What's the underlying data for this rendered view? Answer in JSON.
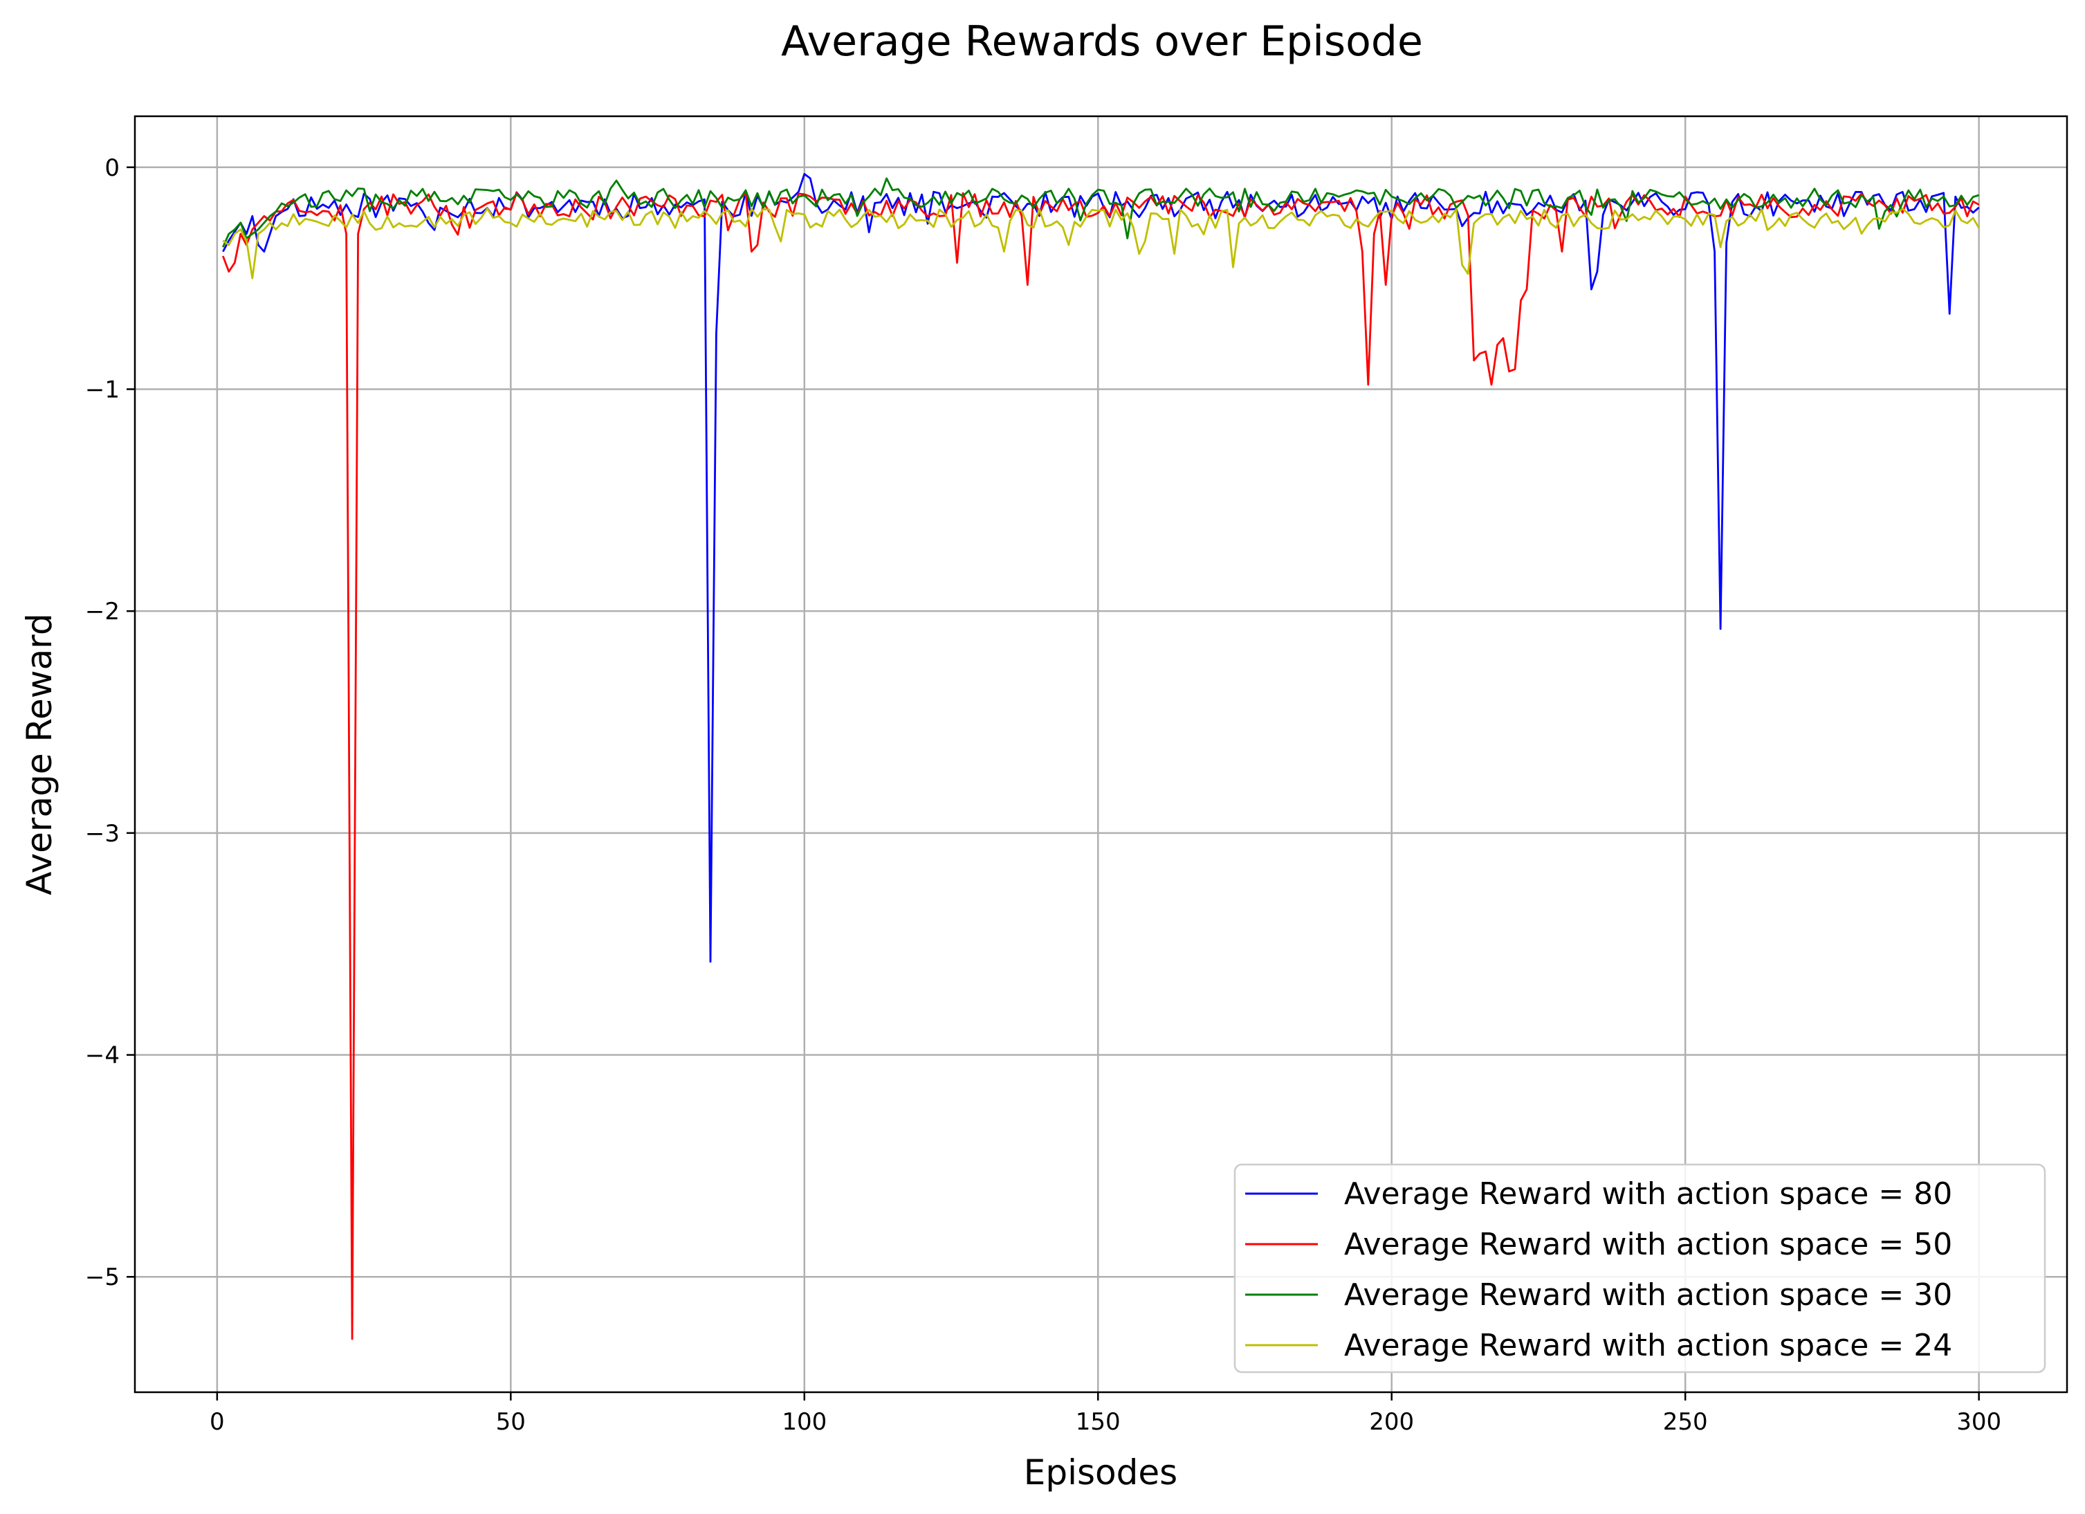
{
  "chart_data": {
    "type": "line",
    "title": "Average Rewards over Episode",
    "xlabel": "Episodes",
    "ylabel": "Average Reward",
    "xlim": [
      -14,
      315
    ],
    "ylim": [
      -5.52,
      0.23
    ],
    "xticks": [
      0,
      50,
      100,
      150,
      200,
      250,
      300
    ],
    "yticks": [
      0,
      -1,
      -2,
      -3,
      -4,
      -5
    ],
    "xtick_labels": [
      "0",
      "50",
      "100",
      "150",
      "200",
      "250",
      "300"
    ],
    "ytick_labels": [
      "0",
      "−1",
      "−2",
      "−3",
      "−4",
      "−5"
    ],
    "grid": true,
    "legend_position": "lower-right",
    "series": [
      {
        "name": "Average Reward with action space = 80",
        "color": "#0000ff",
        "base": -0.17,
        "noise": 0.06,
        "seed": 11,
        "start": [
          -0.38,
          -0.33,
          -0.29,
          -0.25,
          -0.3,
          -0.22,
          -0.35,
          -0.38,
          -0.3,
          -0.22
        ],
        "spikes": [
          [
            84,
            -3.58
          ],
          [
            85,
            -0.75
          ],
          [
            100,
            -0.03
          ],
          [
            101,
            -0.05
          ],
          [
            234,
            -0.55
          ],
          [
            235,
            -0.47
          ],
          [
            255,
            -0.38
          ],
          [
            256,
            -2.08
          ],
          [
            257,
            -0.34
          ],
          [
            295,
            -0.66
          ]
        ]
      },
      {
        "name": "Average Reward with action space = 50",
        "color": "#ff0000",
        "base": -0.17,
        "noise": 0.055,
        "seed": 23,
        "start": [
          -0.4,
          -0.47,
          -0.43,
          -0.3,
          -0.35,
          -0.28,
          -0.25,
          -0.22,
          -0.24,
          -0.2
        ],
        "spikes": [
          [
            22,
            -0.3
          ],
          [
            23,
            -5.28
          ],
          [
            24,
            -0.3
          ],
          [
            91,
            -0.38
          ],
          [
            92,
            -0.35
          ],
          [
            126,
            -0.43
          ],
          [
            138,
            -0.53
          ],
          [
            195,
            -0.38
          ],
          [
            196,
            -0.98
          ],
          [
            197,
            -0.3
          ],
          [
            199,
            -0.53
          ],
          [
            214,
            -0.87
          ],
          [
            215,
            -0.84
          ],
          [
            216,
            -0.83
          ],
          [
            217,
            -0.98
          ],
          [
            218,
            -0.8
          ],
          [
            219,
            -0.77
          ],
          [
            220,
            -0.92
          ],
          [
            221,
            -0.91
          ],
          [
            222,
            -0.6
          ],
          [
            223,
            -0.55
          ],
          [
            229,
            -0.38
          ]
        ]
      },
      {
        "name": "Average Reward with action space = 30",
        "color": "#008000",
        "base": -0.14,
        "noise": 0.045,
        "seed": 37,
        "start": [
          -0.36,
          -0.3,
          -0.28,
          -0.25,
          -0.32,
          -0.3,
          -0.28,
          -0.25,
          -0.22,
          -0.2
        ],
        "spikes": [
          [
            68,
            -0.06
          ],
          [
            114,
            -0.05
          ],
          [
            155,
            -0.32
          ]
        ]
      },
      {
        "name": "Average Reward with action space = 24",
        "color": "#bfbf00",
        "base": -0.23,
        "noise": 0.045,
        "seed": 53,
        "start": [
          -0.33,
          -0.35,
          -0.3,
          -0.28,
          -0.33,
          -0.5,
          -0.3,
          -0.28,
          -0.25,
          -0.28
        ],
        "spikes": [
          [
            134,
            -0.38
          ],
          [
            145,
            -0.35
          ],
          [
            157,
            -0.39
          ],
          [
            163,
            -0.39
          ],
          [
            173,
            -0.45
          ],
          [
            212,
            -0.44
          ],
          [
            213,
            -0.48
          ],
          [
            256,
            -0.36
          ]
        ]
      }
    ]
  }
}
